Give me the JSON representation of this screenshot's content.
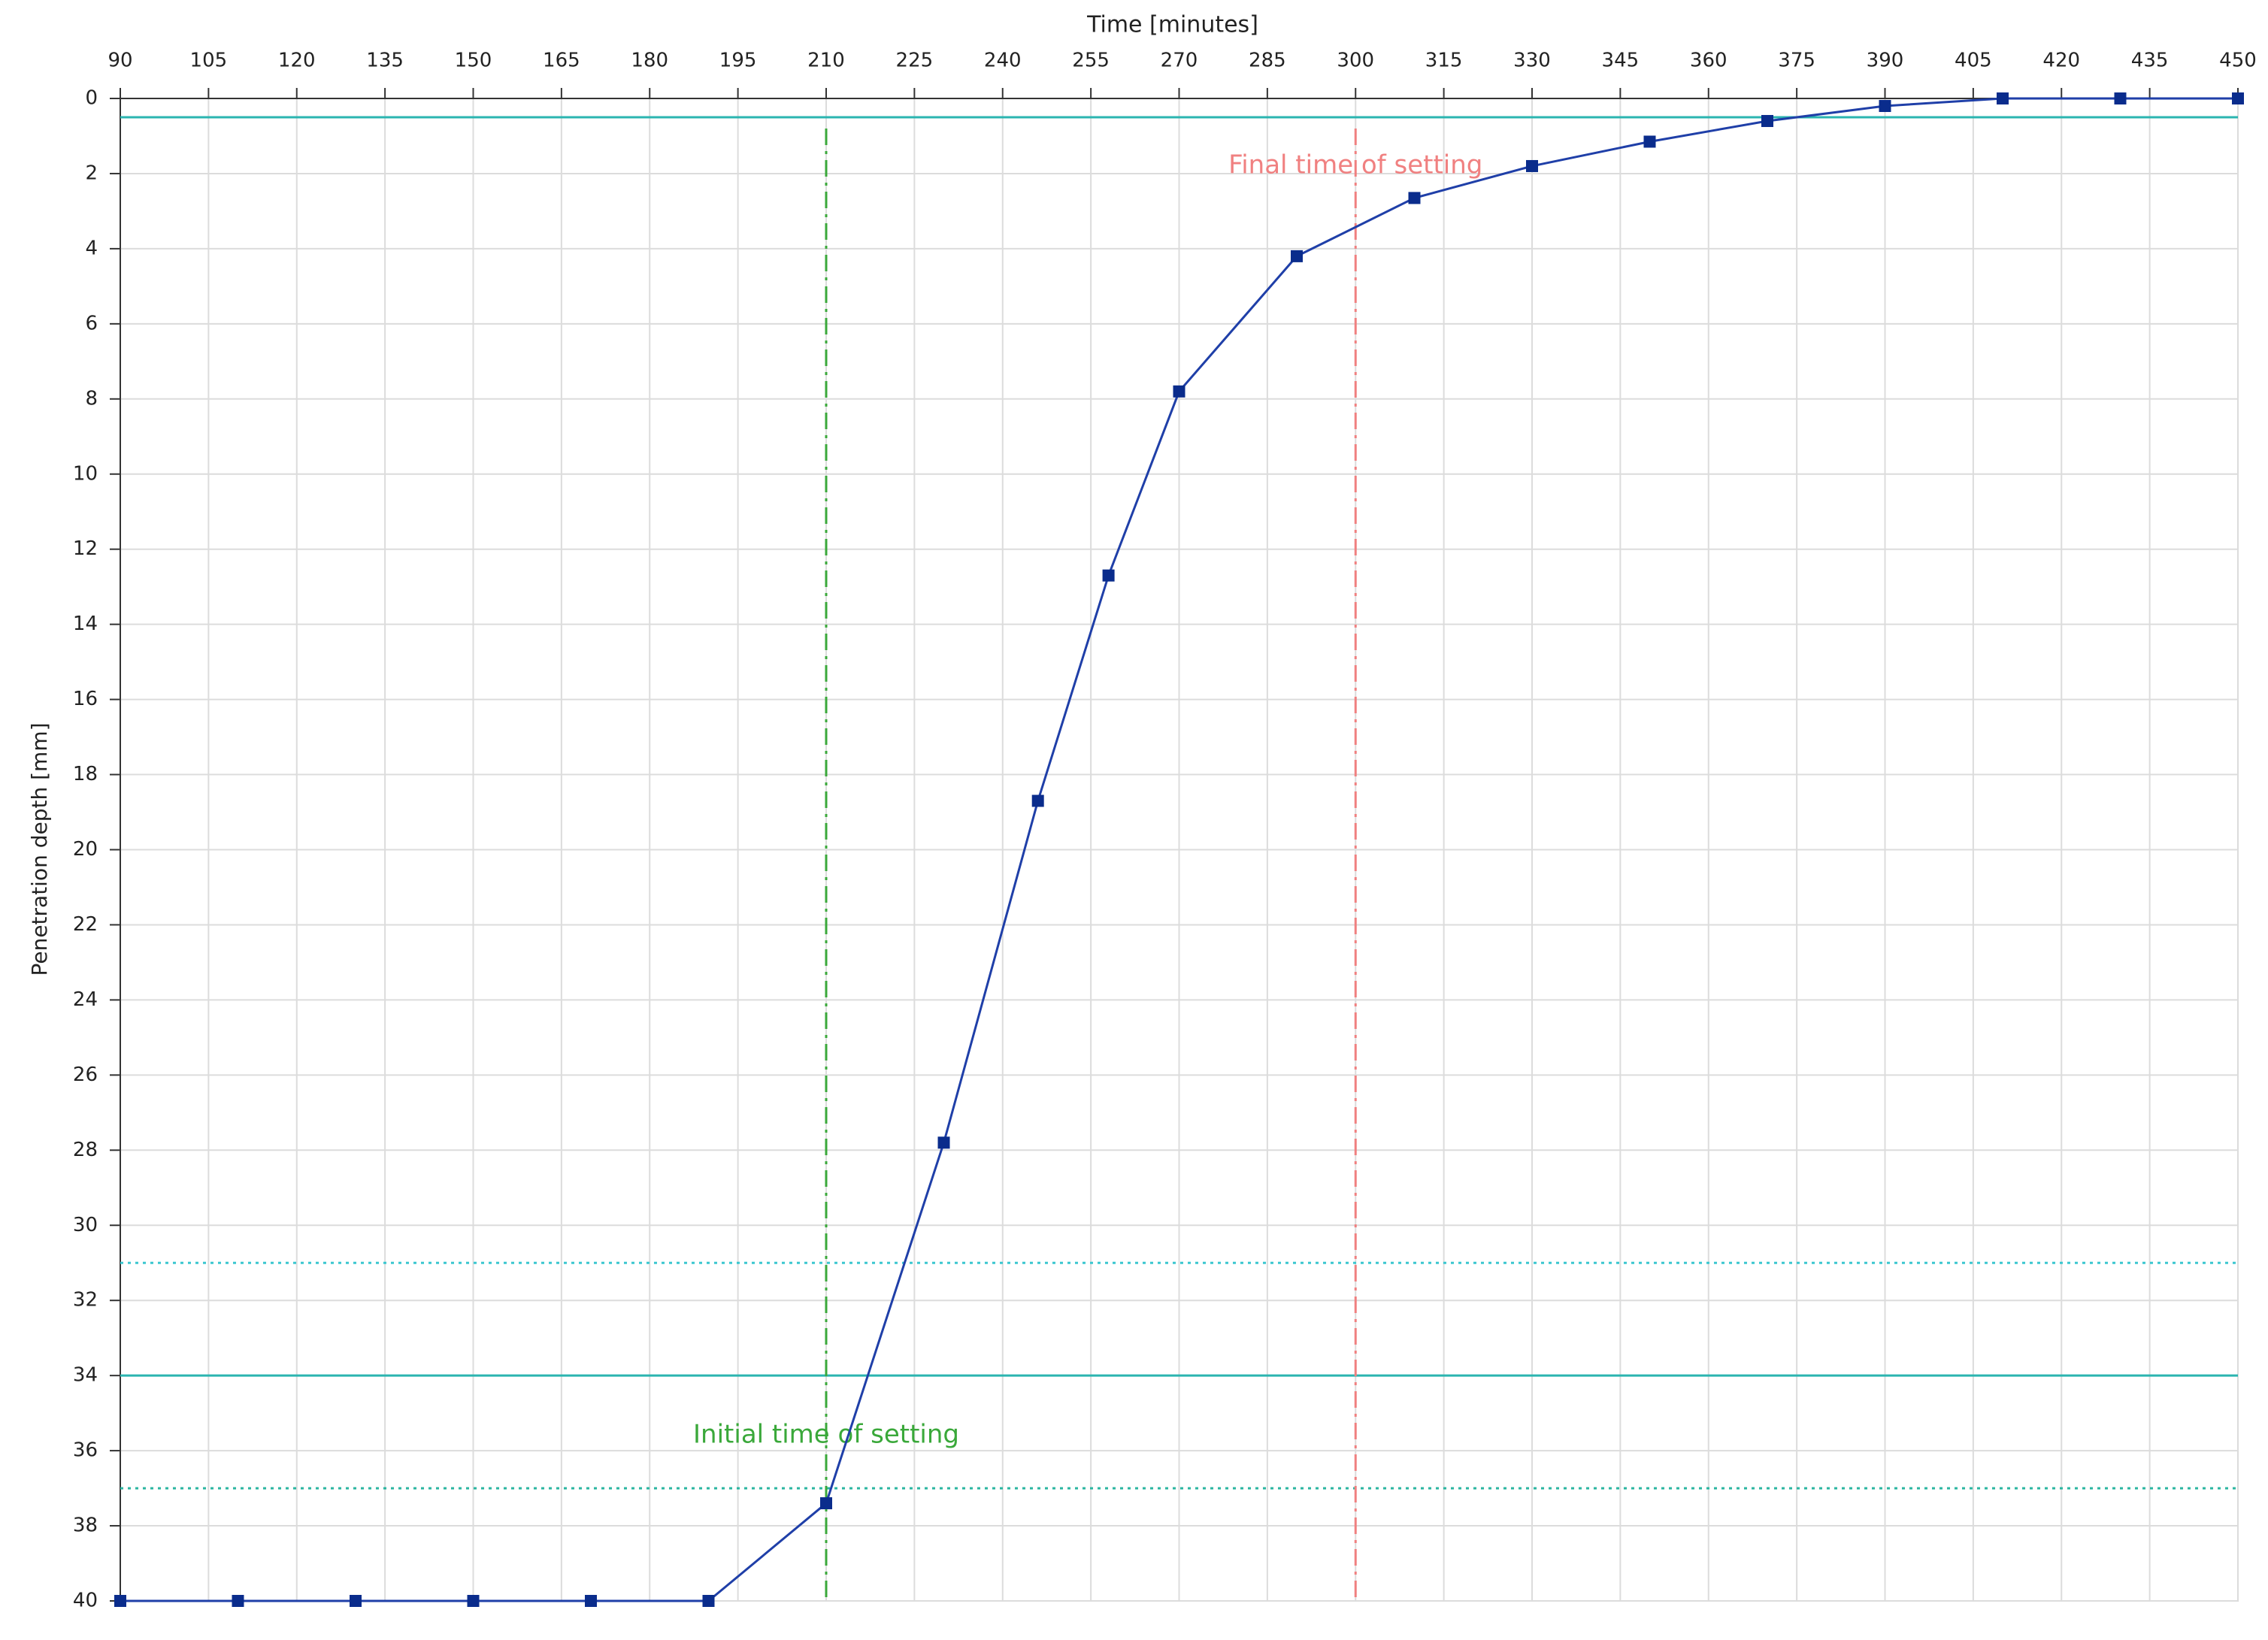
{
  "chart_data": {
    "type": "line",
    "x_label": "Time [minutes]",
    "y_label": "Penetration depth [mm]",
    "x": [
      90,
      110,
      130,
      150,
      170,
      190,
      210,
      230,
      246,
      258,
      270,
      290,
      310,
      330,
      350,
      370,
      390,
      410,
      430,
      450
    ],
    "series": [
      {
        "color": "#1f3fa8",
        "marker_color": "#0a2c8c",
        "values": [
          40,
          40,
          40,
          40,
          40,
          40,
          37.4,
          27.8,
          18.7,
          12.7,
          7.8,
          4.2,
          2.65,
          1.8,
          1.15,
          0.6,
          0.2,
          0,
          0,
          0
        ]
      }
    ],
    "xlim": [
      90,
      450
    ],
    "xticks": [
      90,
      105,
      120,
      135,
      150,
      165,
      180,
      195,
      210,
      225,
      240,
      255,
      270,
      285,
      300,
      315,
      330,
      345,
      360,
      375,
      390,
      405,
      420,
      435,
      450
    ],
    "ylim": [
      0,
      40
    ],
    "y_inverted": true,
    "yticks": [
      0,
      2,
      4,
      6,
      8,
      10,
      12,
      14,
      16,
      18,
      20,
      22,
      24,
      26,
      28,
      30,
      32,
      34,
      36,
      38,
      40
    ],
    "x_axis_position": "top",
    "grid": true,
    "hlines": [
      {
        "value": 0.5,
        "color": "#2bb5b0",
        "style": "solid"
      },
      {
        "value": 31,
        "color": "#3cc7d0",
        "style": "dotted"
      },
      {
        "value": 34,
        "color": "#2bb5b0",
        "style": "solid"
      },
      {
        "value": 37,
        "color": "#2bb5a0",
        "style": "dotted"
      }
    ],
    "vlines": [
      {
        "value": 210,
        "color": "#3aa83a",
        "style": "dashdot",
        "label": "Initial time of setting",
        "label_y": 35.6
      },
      {
        "value": 300,
        "color": "#f08080",
        "style": "dashdot",
        "label": "Final time of setting",
        "label_y": 1.8
      }
    ]
  }
}
